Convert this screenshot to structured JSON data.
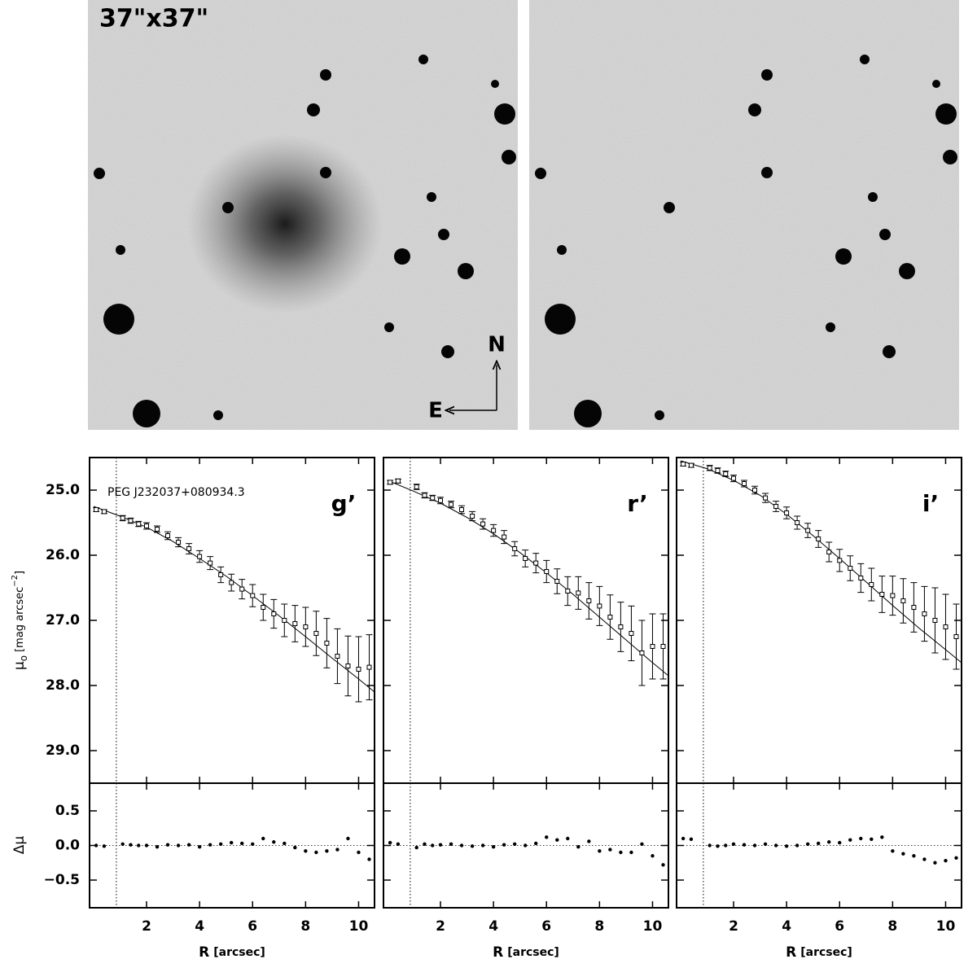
{
  "images": {
    "size_label": "37\"x37\"",
    "north": "N",
    "east": "E"
  },
  "chart_data": {
    "type": "profile",
    "xlabel": [
      "R",
      "[arcsec]"
    ],
    "ylabel": [
      "μ",
      "o",
      "[mag arcsec",
      "−2",
      "]"
    ],
    "residual_ylabel": "Δμ",
    "xlim": [
      -0.15,
      10.6
    ],
    "xticks": [
      2,
      4,
      6,
      8,
      10
    ],
    "ylim": [
      24.5,
      29.5
    ],
    "y_inverted": true,
    "yticks": [
      {
        "value": 25,
        "label": "25.0"
      },
      {
        "value": 26,
        "label": "26.0"
      },
      {
        "value": 27,
        "label": "27.0"
      },
      {
        "value": 28,
        "label": "28.0"
      },
      {
        "value": 29,
        "label": "29.0"
      }
    ],
    "residual_ylim": [
      -0.9,
      0.9
    ],
    "residual_yticks": [
      {
        "value": 0.5,
        "label": "0.5"
      },
      {
        "value": 0,
        "label": "0.0"
      },
      {
        "value": -0.5,
        "label": "−0.5"
      }
    ],
    "color": "#000000",
    "panels": [
      {
        "label": "g’",
        "annotation": "PEG J232037+080934.3",
        "psf_radius": 0.86,
        "x": [
          0.1,
          0.4,
          1.1,
          1.4,
          1.7,
          2.0,
          2.4,
          2.8,
          3.2,
          3.6,
          4.0,
          4.4,
          4.8,
          5.2,
          5.6,
          6.0,
          6.4,
          6.8,
          7.2,
          7.6,
          8.0,
          8.4,
          8.8,
          9.2,
          9.6,
          10.0,
          10.4
        ],
        "values": [
          25.3,
          25.33,
          25.43,
          25.47,
          25.52,
          25.55,
          25.6,
          25.7,
          25.8,
          25.9,
          26.02,
          26.12,
          26.3,
          26.42,
          26.52,
          26.62,
          26.8,
          26.9,
          27.0,
          27.05,
          27.1,
          27.2,
          27.35,
          27.55,
          27.7,
          27.75,
          27.72
        ],
        "errors": [
          0.03,
          0.03,
          0.04,
          0.04,
          0.04,
          0.05,
          0.05,
          0.06,
          0.07,
          0.08,
          0.09,
          0.1,
          0.12,
          0.13,
          0.15,
          0.17,
          0.2,
          0.22,
          0.25,
          0.28,
          0.3,
          0.34,
          0.38,
          0.42,
          0.46,
          0.5,
          0.5
        ],
        "fit": {
          "x": [
            0,
            1,
            2,
            3,
            4,
            5,
            6,
            7,
            8,
            9,
            10,
            10.6
          ],
          "values": [
            25.25,
            25.4,
            25.57,
            25.79,
            26.05,
            26.32,
            26.62,
            26.93,
            27.25,
            27.58,
            27.9,
            28.1
          ]
        },
        "residuals": [
          0.0,
          -0.01,
          0.02,
          0.01,
          0.0,
          0.0,
          -0.02,
          0.01,
          0.0,
          0.01,
          -0.02,
          0.01,
          0.02,
          0.04,
          0.03,
          0.02,
          0.1,
          0.05,
          0.03,
          -0.03,
          -0.08,
          -0.1,
          -0.08,
          -0.06,
          0.1,
          -0.1,
          -0.2
        ]
      },
      {
        "label": "r’",
        "psf_radius": 0.86,
        "x": [
          0.1,
          0.4,
          1.1,
          1.4,
          1.7,
          2.0,
          2.4,
          2.8,
          3.2,
          3.6,
          4.0,
          4.4,
          4.8,
          5.2,
          5.6,
          6.0,
          6.4,
          6.8,
          7.2,
          7.6,
          8.0,
          8.4,
          8.8,
          9.2,
          9.6,
          10.0,
          10.4
        ],
        "values": [
          24.88,
          24.86,
          24.95,
          25.08,
          25.12,
          25.16,
          25.22,
          25.3,
          25.4,
          25.52,
          25.62,
          25.72,
          25.9,
          26.05,
          26.12,
          26.25,
          26.4,
          26.55,
          26.58,
          26.7,
          26.78,
          26.95,
          27.1,
          27.2,
          27.5,
          27.4,
          27.4
        ],
        "errors": [
          0.03,
          0.03,
          0.04,
          0.04,
          0.04,
          0.05,
          0.05,
          0.06,
          0.07,
          0.08,
          0.09,
          0.1,
          0.11,
          0.13,
          0.15,
          0.17,
          0.19,
          0.22,
          0.25,
          0.28,
          0.3,
          0.34,
          0.38,
          0.42,
          0.5,
          0.5,
          0.5
        ],
        "fit": {
          "x": [
            0,
            1,
            2,
            3,
            4,
            5,
            6,
            7,
            8,
            9,
            10,
            10.6
          ],
          "values": [
            24.85,
            25.02,
            25.2,
            25.42,
            25.67,
            25.96,
            26.27,
            26.6,
            26.95,
            27.3,
            27.65,
            27.85
          ]
        },
        "residuals": [
          0.04,
          0.02,
          -0.03,
          0.02,
          0.0,
          0.01,
          0.02,
          0.0,
          -0.01,
          0.0,
          -0.02,
          0.01,
          0.02,
          0.0,
          0.03,
          0.12,
          0.08,
          0.1,
          -0.02,
          0.06,
          -0.08,
          -0.06,
          -0.1,
          -0.1,
          0.02,
          -0.15,
          -0.28
        ]
      },
      {
        "label": "i’",
        "psf_radius": 0.86,
        "x": [
          0.1,
          0.4,
          1.1,
          1.4,
          1.7,
          2.0,
          2.4,
          2.8,
          3.2,
          3.6,
          4.0,
          4.4,
          4.8,
          5.2,
          5.6,
          6.0,
          6.4,
          6.8,
          7.2,
          7.6,
          8.0,
          8.4,
          8.8,
          9.2,
          9.6,
          10.0,
          10.4
        ],
        "values": [
          24.6,
          24.62,
          24.66,
          24.7,
          24.75,
          24.82,
          24.9,
          25.0,
          25.12,
          25.25,
          25.35,
          25.5,
          25.62,
          25.75,
          25.95,
          26.08,
          26.2,
          26.35,
          26.45,
          26.6,
          26.62,
          26.7,
          26.8,
          26.9,
          27.0,
          27.1,
          27.25
        ],
        "errors": [
          0.03,
          0.03,
          0.04,
          0.04,
          0.04,
          0.05,
          0.05,
          0.06,
          0.07,
          0.08,
          0.09,
          0.1,
          0.11,
          0.13,
          0.15,
          0.17,
          0.19,
          0.22,
          0.25,
          0.28,
          0.3,
          0.34,
          0.38,
          0.42,
          0.5,
          0.5,
          0.5
        ],
        "fit": {
          "x": [
            0,
            1,
            2,
            3,
            4,
            5,
            6,
            7,
            8,
            9,
            10,
            10.6
          ],
          "values": [
            24.55,
            24.67,
            24.85,
            25.08,
            25.37,
            25.7,
            26.05,
            26.41,
            26.77,
            27.12,
            27.45,
            27.65
          ]
        },
        "residuals": [
          0.1,
          0.09,
          0.0,
          -0.01,
          0.0,
          0.02,
          0.01,
          0.0,
          0.02,
          0.0,
          -0.01,
          0.0,
          0.02,
          0.03,
          0.05,
          0.04,
          0.08,
          0.1,
          0.09,
          0.12,
          -0.08,
          -0.12,
          -0.15,
          -0.2,
          -0.25,
          -0.22,
          -0.18
        ]
      }
    ]
  }
}
